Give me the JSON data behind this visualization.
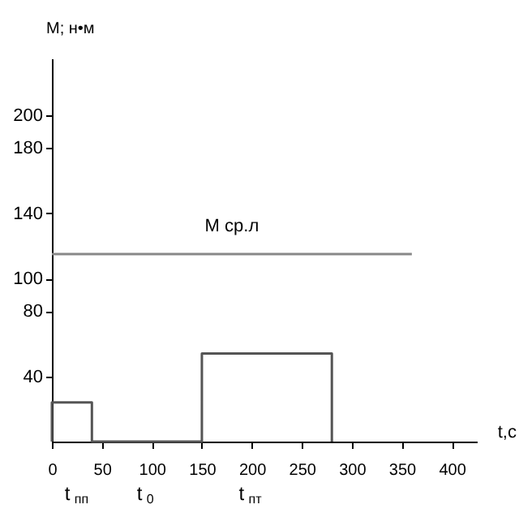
{
  "chart_data": {
    "type": "line",
    "xlabel": "t,c",
    "ylabel": "M; н•м",
    "xlim": [
      0,
      425
    ],
    "ylim": [
      0,
      235
    ],
    "xticks": [
      0,
      50,
      100,
      150,
      200,
      250,
      300,
      350,
      400
    ],
    "yticks": [
      40,
      80,
      100,
      140,
      180,
      200
    ],
    "grid": false,
    "legend": false,
    "marker": "none",
    "line_style": "solid",
    "series": [
      {
        "color": "#555555",
        "x": [
          0,
          0,
          40,
          40,
          150,
          150,
          280,
          280
        ],
        "values": [
          0,
          24,
          24,
          0,
          0,
          54,
          54,
          0
        ]
      },
      {
        "name": "M ср.л",
        "color": "#888888",
        "x": [
          0,
          360
        ],
        "values": [
          115,
          115
        ]
      }
    ],
    "annotations": [
      "t$_{пп}$",
      "t$_{0}$",
      "t$_{пт}$"
    ]
  }
}
